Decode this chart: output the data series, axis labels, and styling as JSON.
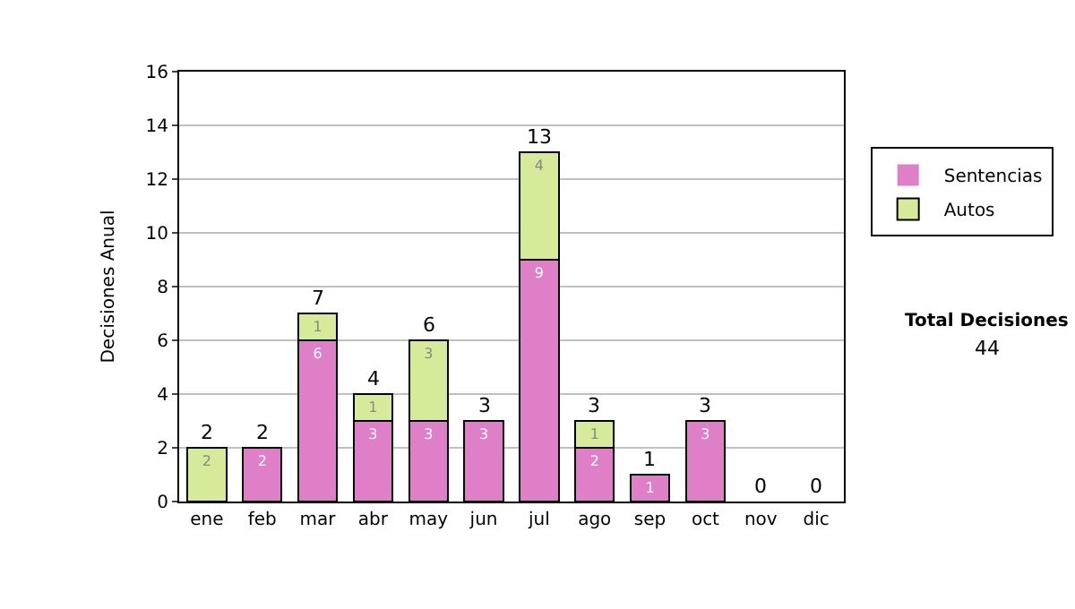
{
  "chart_data": {
    "type": "bar",
    "stacked": true,
    "ylabel": "Decisiones Anual",
    "categories": [
      "ene",
      "feb",
      "mar",
      "abr",
      "may",
      "jun",
      "jul",
      "ago",
      "sep",
      "oct",
      "nov",
      "dic"
    ],
    "series": [
      {
        "name": "Sentencias",
        "color": "#df7fc7",
        "values": [
          0,
          2,
          6,
          3,
          3,
          3,
          9,
          2,
          1,
          3,
          0,
          0
        ],
        "value_labels": [
          null,
          "2",
          "6",
          "3",
          "3",
          "3",
          "9",
          "2",
          "1",
          "3",
          null,
          null
        ]
      },
      {
        "name": "Autos",
        "color": "#d6eb9a",
        "values": [
          2,
          0,
          1,
          1,
          3,
          0,
          4,
          1,
          0,
          0,
          0,
          0
        ],
        "value_labels": [
          "2",
          null,
          "1",
          "1",
          "3",
          null,
          "4",
          "1",
          null,
          null,
          null,
          null
        ]
      }
    ],
    "totals": [
      "2",
      "2",
      "7",
      "4",
      "6",
      "3",
      "13",
      "3",
      "1",
      "3",
      "0",
      "0"
    ],
    "ylim": [
      0,
      16
    ],
    "yticks": [
      0,
      2,
      4,
      6,
      8,
      10,
      12,
      14,
      16
    ],
    "grid": "y",
    "legend": "right",
    "annotations": [
      "Total Decisiones",
      "44"
    ]
  }
}
